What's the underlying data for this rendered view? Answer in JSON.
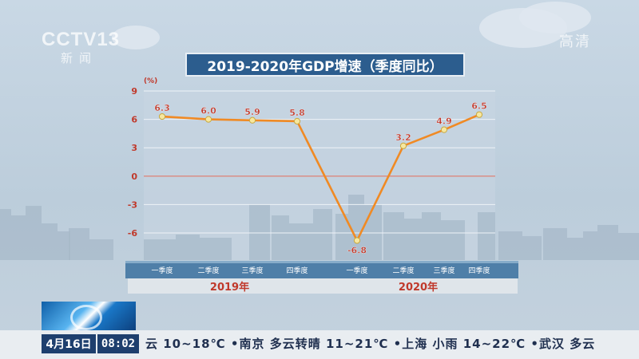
{
  "overlay": {
    "logo_main": "CCTV13",
    "logo_sub": "新闻",
    "hd_badge": "高清"
  },
  "chart_data": {
    "type": "line",
    "title": "2019-2020年GDP增速（季度同比）",
    "ylabel": "(%)",
    "ylim": [
      -9,
      9
    ],
    "yticks": [
      9,
      6,
      3,
      0,
      -3,
      -6
    ],
    "categories": [
      "一季度",
      "二季度",
      "三季度",
      "四季度",
      "一季度",
      "二季度",
      "三季度",
      "四季度"
    ],
    "groups": [
      {
        "label": "2019年",
        "start": 0,
        "end": 3
      },
      {
        "label": "2020年",
        "start": 4,
        "end": 7
      }
    ],
    "values": [
      6.3,
      6.0,
      5.9,
      5.8,
      -6.8,
      3.2,
      4.9,
      6.5
    ],
    "data_labels": [
      "6.3",
      "6.0",
      "5.9",
      "5.8",
      "-6.8",
      "3.2",
      "4.9",
      "6.5"
    ],
    "grid": true,
    "line_color": "#f08a24",
    "label_color": "#c0392b",
    "zero_line_color": "#e0786a"
  },
  "ticker": {
    "date": "4月16日",
    "time": "08:02",
    "weather": "云 10~18℃ •南京 多云转晴 11~21℃ •上海 小雨 14~22℃ •武汉 多云"
  }
}
